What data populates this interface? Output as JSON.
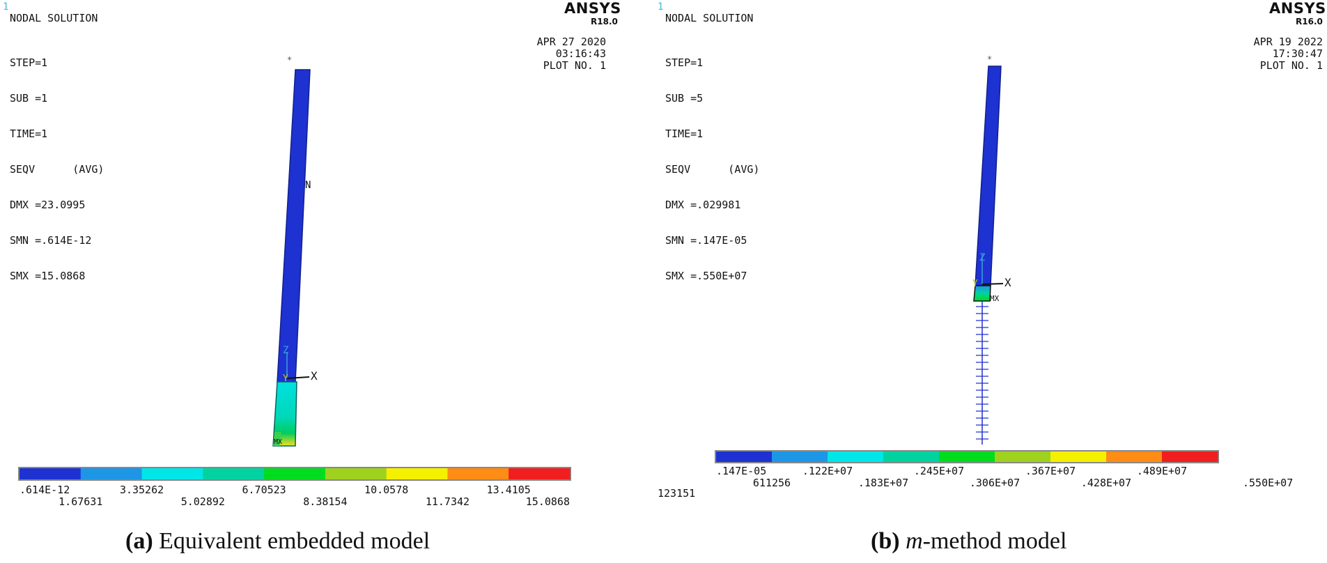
{
  "panels": [
    {
      "window_number": "1",
      "header_title": "NODAL SOLUTION",
      "info_lines": [
        "STEP=1",
        "SUB =1",
        "TIME=1",
        "SEQV      (AVG)",
        "DMX =23.0995",
        "SMN =.614E-12",
        "SMX =15.0868"
      ],
      "brand": "ANSYS",
      "release": "R18.0",
      "date": "APR 27 2020",
      "time": "03:16:43",
      "plot_no": "PLOT NO.    1",
      "node_label_n": "N",
      "min_marker": "MN",
      "max_marker": "MX",
      "axis_labels": {
        "x": "X",
        "y": "Y",
        "z": "Z"
      },
      "legend_colors": [
        "#1e32d2",
        "#1e96e6",
        "#00e6e6",
        "#00d2a0",
        "#00dc1e",
        "#9ed21e",
        "#f5f000",
        "#ff8c14",
        "#f01e1e"
      ],
      "legend_values_top": [
        ".614E-12",
        "3.35262",
        "6.70523",
        "10.0578",
        "13.4105"
      ],
      "legend_values_bottom": [
        "1.67631",
        "5.02892",
        "8.38154",
        "11.7342",
        "15.0868"
      ],
      "caption_letter": "(a)",
      "caption_text": " Equivalent embedded model"
    },
    {
      "window_number": "1",
      "header_title": "NODAL SOLUTION",
      "info_lines": [
        "STEP=1",
        "SUB =5",
        "TIME=1",
        "SEQV      (AVG)",
        "DMX =.029981",
        "SMN =.147E-05",
        "SMX =.550E+07"
      ],
      "brand": "ANSYS",
      "release": "R16.0",
      "date": "APR 19 2022",
      "time": "17:30:47",
      "plot_no": "PLOT NO.    1",
      "max_marker": "MX",
      "axis_labels": {
        "x": "X",
        "y": "Y",
        "z": "Z"
      },
      "legend_colors": [
        "#1e32d2",
        "#1e96e6",
        "#00e6e6",
        "#00d2a0",
        "#00dc1e",
        "#9ed21e",
        "#f5f000",
        "#ff8c14",
        "#f01e1e"
      ],
      "legend_values_top": [
        ".147E-05",
        ".122E+07",
        ".245E+07",
        ".367E+07",
        ".489E+07"
      ],
      "legend_values_bottom": [
        "611256",
        ".183E+07",
        ".306E+07",
        ".428E+07",
        ".550E+07"
      ],
      "footer_id": "123151",
      "caption_letter": "(b)",
      "caption_italic": "m",
      "caption_text": "-method model"
    }
  ]
}
